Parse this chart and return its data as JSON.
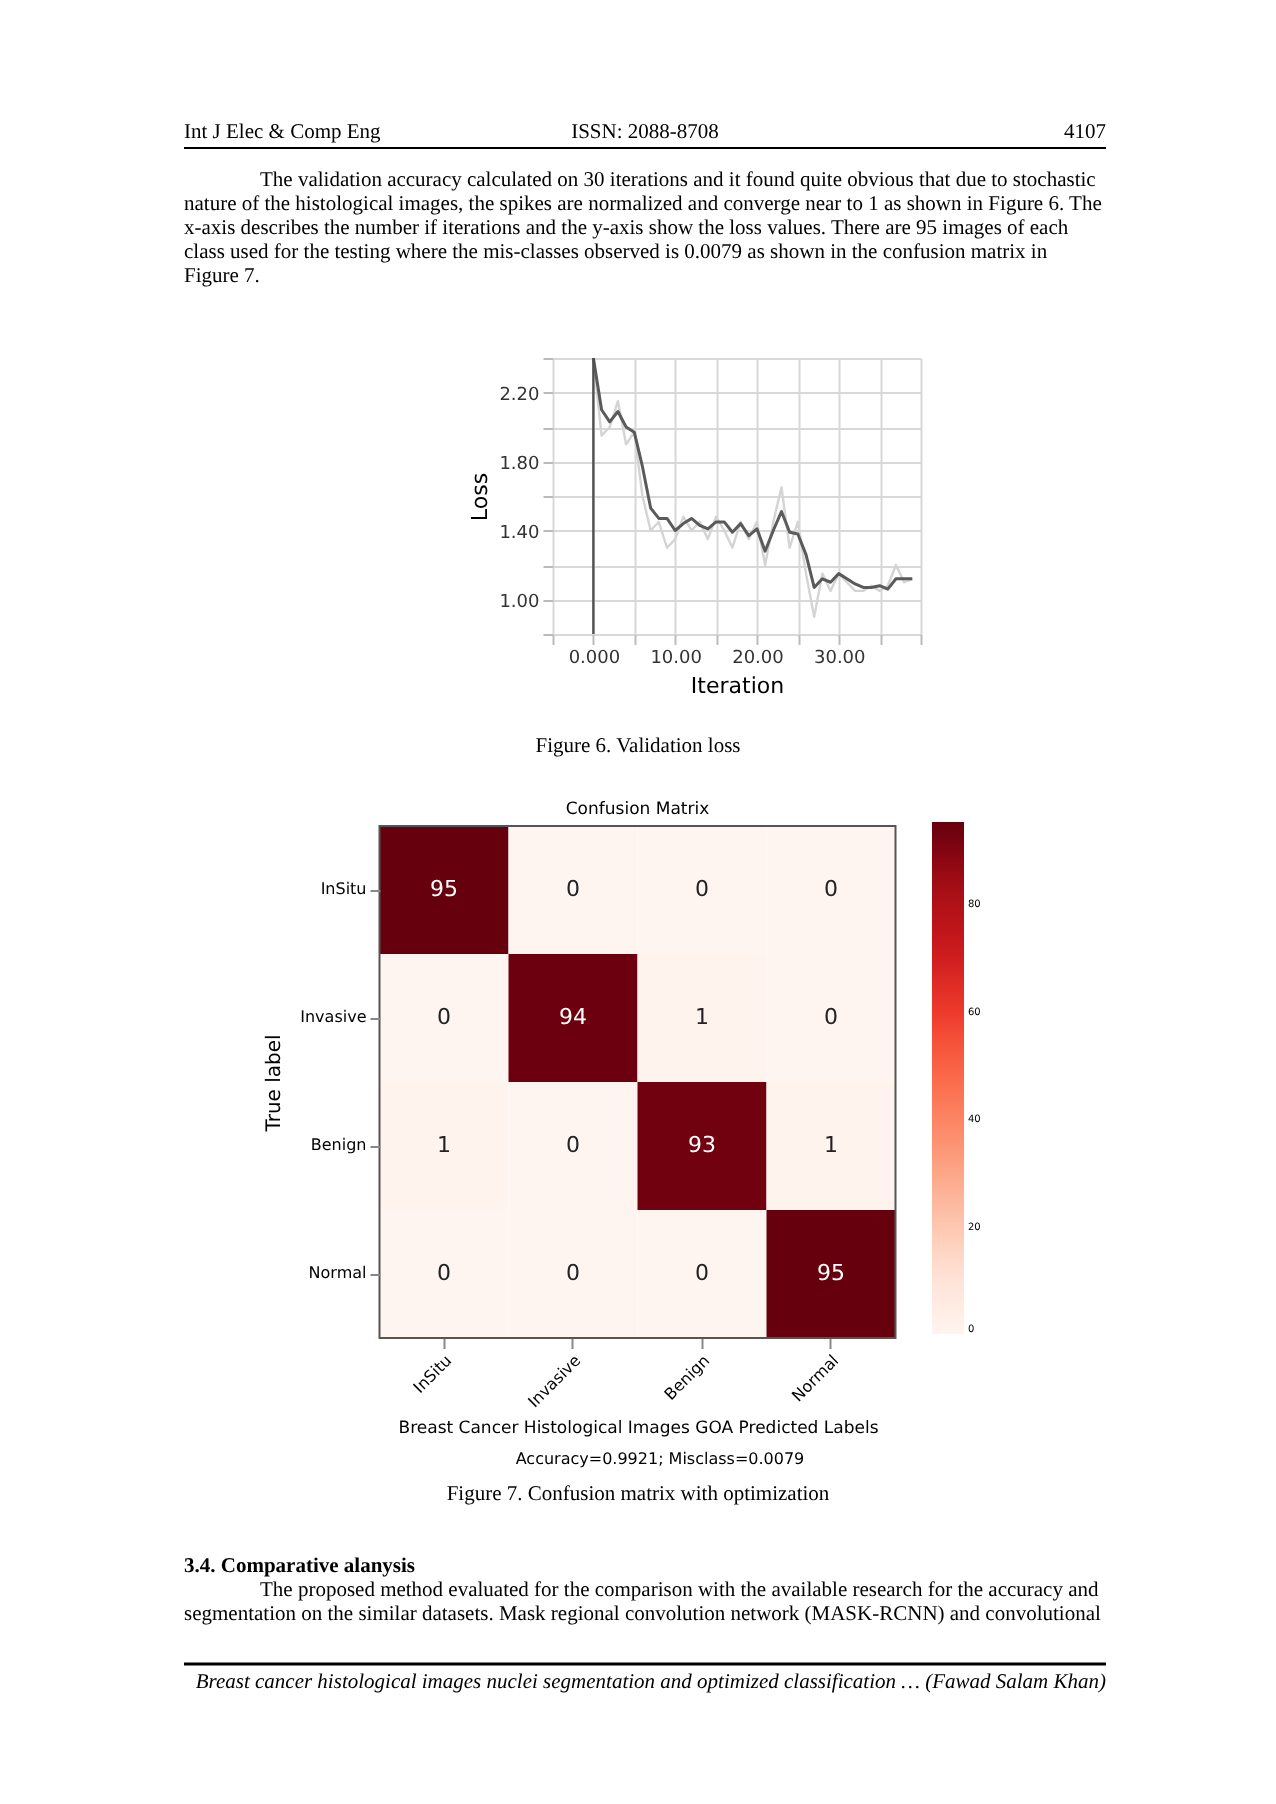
{
  "chart_data": [
    {
      "type": "line",
      "xlabel": "Iteration",
      "ylabel": "Loss",
      "x": [
        0,
        1,
        2,
        3,
        4,
        5,
        6,
        7,
        8,
        9,
        10,
        11,
        12,
        13,
        14,
        15,
        16,
        17,
        18,
        19,
        20,
        21,
        22,
        23,
        24,
        25,
        26,
        27,
        28,
        29,
        30,
        31,
        32,
        33,
        34,
        35,
        36,
        37,
        38,
        39
      ],
      "series": [
        {
          "color": "#d4d4d4",
          "values": [
            2.4,
            1.95,
            2.0,
            2.15,
            1.9,
            1.97,
            1.6,
            1.4,
            1.45,
            1.3,
            1.35,
            1.48,
            1.4,
            1.45,
            1.35,
            1.48,
            1.4,
            1.3,
            1.45,
            1.35,
            1.45,
            1.2,
            1.45,
            1.65,
            1.3,
            1.45,
            1.15,
            0.9,
            1.15,
            1.05,
            1.15,
            1.1,
            1.05,
            1.05,
            1.08,
            1.05,
            1.08,
            1.2,
            1.1,
            1.12
          ]
        },
        {
          "color": "#5a5a5a",
          "values": [
            2.4,
            2.1,
            2.03,
            2.09,
            2.0,
            1.97,
            1.77,
            1.53,
            1.47,
            1.47,
            1.4,
            1.44,
            1.47,
            1.43,
            1.41,
            1.45,
            1.45,
            1.39,
            1.44,
            1.37,
            1.41,
            1.28,
            1.4,
            1.51,
            1.39,
            1.38,
            1.26,
            1.07,
            1.12,
            1.1,
            1.15,
            1.12,
            1.09,
            1.07,
            1.07,
            1.08,
            1.06,
            1.12,
            1.12,
            1.12
          ]
        }
      ],
      "xlim": [
        -5,
        40
      ],
      "ylim": [
        0.8,
        2.4
      ],
      "xticks": [
        {
          "value": -5,
          "label": null
        },
        {
          "value": 0,
          "label": "0.000"
        },
        {
          "value": 5,
          "label": null
        },
        {
          "value": 10,
          "label": "10.00"
        },
        {
          "value": 15,
          "label": null
        },
        {
          "value": 20,
          "label": "20.00"
        },
        {
          "value": 25,
          "label": null
        },
        {
          "value": 30,
          "label": "30.00"
        },
        {
          "value": 35,
          "label": null
        },
        {
          "value": 40,
          "label": null
        }
      ],
      "yticks": [
        {
          "value": 0.8,
          "label": null
        },
        {
          "value": 1.0,
          "label": "1.00"
        },
        {
          "value": 1.2,
          "label": null
        },
        {
          "value": 1.4,
          "label": "1.40"
        },
        {
          "value": 1.6,
          "label": null
        },
        {
          "value": 1.8,
          "label": "1.80"
        },
        {
          "value": 2.0,
          "label": null
        },
        {
          "value": 2.2,
          "label": "2.20"
        },
        {
          "value": 2.4,
          "label": null
        }
      ],
      "grid": true,
      "legend": false,
      "ref_lines": [
        {
          "axis": "x",
          "value": 0,
          "color": "#505050"
        }
      ],
      "annotations": [
        "Int J Elec & Comp Eng",
        "ISSN: 2088-8708",
        "4107",
        "The validation accuracy calculated on 30 iterations and it found quite obvious that due to stochastic",
        "nature of the histological images, the spikes are normalized and converge near to 1 as shown in Figure 6. The",
        "x-axis describes the number if iterations and the y-axis show the loss values. There are 95 images of each",
        "class used for the testing where the mis-classes observed is 0.0079 as shown in the confusion matrix in",
        "Figure 7.",
        "Figure 6. Validation loss"
      ]
    },
    {
      "type": "heatmap",
      "title": "Confusion Matrix",
      "xlabel": "Breast Cancer Histological Images GOA Predicted Labels",
      "ylabel": "True label",
      "categories": [
        "InSitu",
        "Invasive",
        "Benign",
        "Normal"
      ],
      "y_categories": [
        "InSitu",
        "Invasive",
        "Benign",
        "Normal"
      ],
      "cells": [
        [
          95,
          0,
          0,
          0
        ],
        [
          0,
          94,
          1,
          0
        ],
        [
          1,
          0,
          93,
          1
        ],
        [
          0,
          0,
          0,
          95
        ]
      ],
      "clim": [
        0,
        95
      ],
      "cticks": [
        0,
        20,
        40,
        60,
        80
      ],
      "data_labels": true,
      "annotations": [
        "Accuracy=0.9921; Misclass=0.0079",
        "Figure 7. Confusion matrix with optimization",
        "3.4.  Comparative alanysis",
        "The proposed method evaluated for the comparison with the available research for the accuracy and",
        "segmentation on the similar datasets. Mask regional convolution network (MASK-RCNN) and convolutional",
        "Breast cancer histological images nuclei segmentation and optimized classification … (Fawad Salam Khan)"
      ]
    }
  ]
}
